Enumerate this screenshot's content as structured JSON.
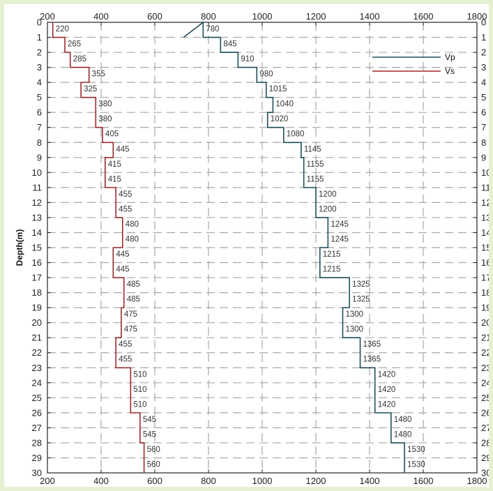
{
  "chart_data": {
    "type": "line",
    "title": "",
    "xlabel": "",
    "ylabel": "Depth(m)",
    "xlim": [
      200,
      1800
    ],
    "ylim": [
      0,
      30
    ],
    "y_inverted": true,
    "x_ticks": [
      "200",
      "400",
      "600",
      "800",
      "1000",
      "1200",
      "1400",
      "1600",
      "1800"
    ],
    "y_ticks": [
      "0",
      "1",
      "2",
      "3",
      "4",
      "5",
      "6",
      "7",
      "8",
      "9",
      "10",
      "11",
      "12",
      "13",
      "14",
      "15",
      "16",
      "17",
      "18",
      "19",
      "20",
      "21",
      "22",
      "23",
      "24",
      "25",
      "26",
      "27",
      "28",
      "29",
      "30"
    ],
    "grid": true,
    "legend_position": "top-right",
    "step_profile": true,
    "series": [
      {
        "name": "Vp",
        "color": "#1f4e5a",
        "values": [
          780,
          845,
          910,
          980,
          1015,
          1040,
          1020,
          1080,
          1145,
          1155,
          1155,
          1200,
          1200,
          1245,
          1245,
          1215,
          1215,
          1325,
          1325,
          1300,
          1300,
          1365,
          1365,
          1420,
          1420,
          1420,
          1480,
          1480,
          1530,
          1530
        ],
        "labels": [
          "780",
          "845",
          "910",
          "980",
          "1015",
          "1040",
          "1020",
          "1080",
          "1145",
          "1155",
          "1155",
          "1200",
          "1200",
          "1245",
          "1245",
          "1215",
          "1215",
          "1325",
          "1325",
          "1300",
          "1300",
          "1365",
          "1365",
          "1420",
          "1420",
          "1420",
          "1480",
          "1480",
          "1530",
          "1530"
        ]
      },
      {
        "name": "Vs",
        "color": "#9b2a2a",
        "values": [
          220,
          265,
          285,
          355,
          325,
          380,
          380,
          405,
          445,
          415,
          415,
          455,
          455,
          480,
          480,
          445,
          445,
          485,
          485,
          475,
          475,
          455,
          455,
          510,
          510,
          510,
          545,
          545,
          560,
          560
        ],
        "labels": [
          "220",
          "265",
          "285",
          "355",
          "325",
          "380",
          "380",
          "405",
          "445",
          "415",
          "415",
          "455",
          "455",
          "480",
          "480",
          "445",
          "445",
          "485",
          "485",
          "475",
          "475",
          "455",
          "455",
          "510",
          "510",
          "510",
          "545",
          "545",
          "560",
          "560"
        ]
      }
    ]
  }
}
